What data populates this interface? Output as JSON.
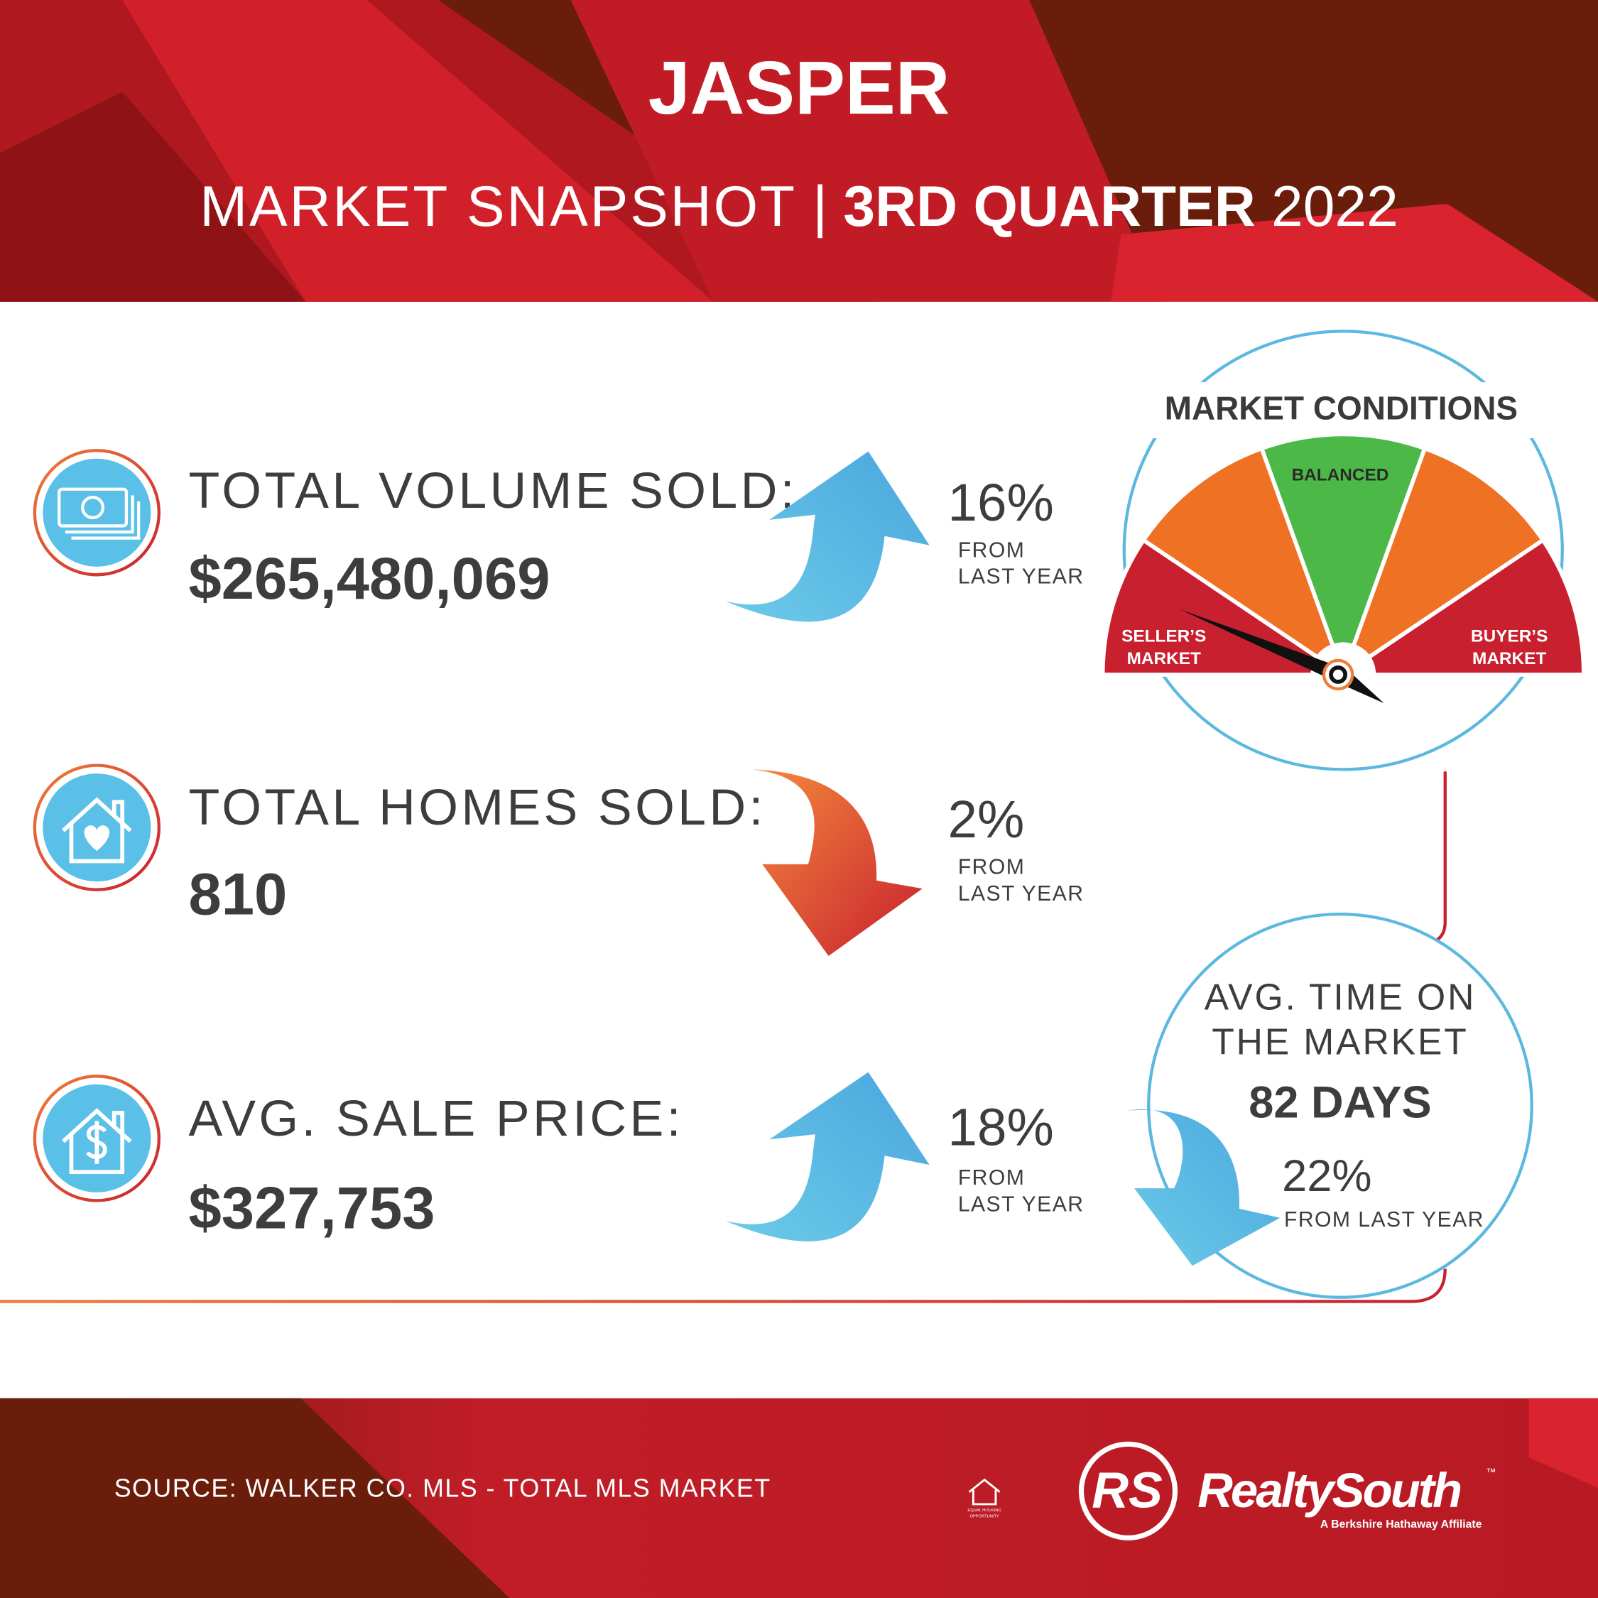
{
  "header": {
    "title": "JASPER",
    "subtitle": {
      "lead": "MARKET SNAPSHOT",
      "separator": "|",
      "quarter": "3RD QUARTER",
      "year": "2022"
    }
  },
  "stats": [
    {
      "label": "TOTAL VOLUME SOLD:",
      "value": "$265,480,069",
      "change": "16%",
      "note": [
        "FROM",
        "LAST YEAR"
      ]
    },
    {
      "label": "TOTAL HOMES SOLD:",
      "value": "810",
      "change": "2%",
      "note": [
        "FROM",
        "LAST YEAR"
      ]
    },
    {
      "label": "AVG. SALE PRICE:",
      "value": "$327,753",
      "change": "18%",
      "note": [
        "FROM",
        "LAST YEAR"
      ]
    }
  ],
  "market_conditions": {
    "title": "MARKET CONDITIONS",
    "balanced": "BALANCED",
    "sellers": [
      "SELLER’S",
      "MARKET"
    ],
    "buyers": [
      "BUYER’S",
      "MARKET"
    ]
  },
  "time_on_market": {
    "label": [
      "AVG. TIME ON",
      "THE MARKET"
    ],
    "value": "82 DAYS",
    "change": "22%",
    "note": "FROM LAST YEAR"
  },
  "footer": {
    "source": "SOURCE: WALKER CO. MLS - TOTAL MLS MARKET",
    "equal_housing": [
      "EQUAL HOUSING",
      "OPPORTUNITY"
    ],
    "logo_mark": "RS",
    "brand": "RealtySouth",
    "trademark": "™",
    "tagline": "A Berkshire Hathaway Affiliate"
  }
}
